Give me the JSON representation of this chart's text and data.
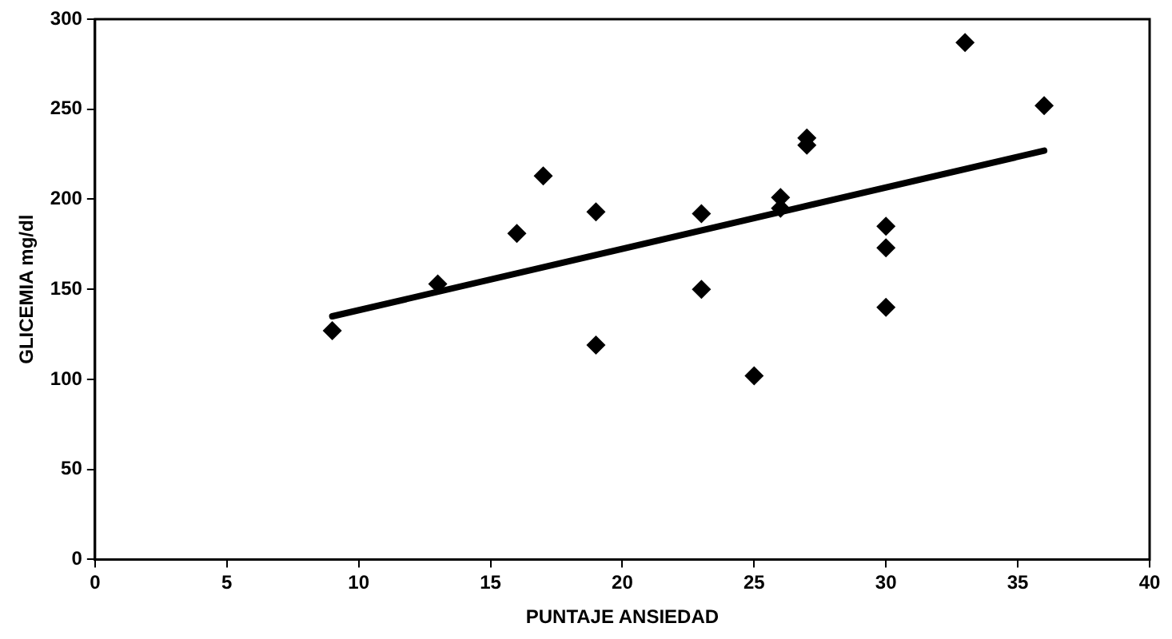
{
  "chart_data": {
    "type": "scatter",
    "xlabel": "PUNTAJE ANSIEDAD",
    "ylabel": "GLICEMIA mg/dl",
    "xlim": [
      0,
      40
    ],
    "xticks": [
      0,
      5,
      10,
      15,
      20,
      25,
      30,
      35,
      40
    ],
    "ylim": [
      0,
      300
    ],
    "yticks": [
      0,
      50,
      100,
      150,
      200,
      250,
      300
    ],
    "grid": false,
    "legend": false,
    "marker": "diamond",
    "series": [
      {
        "color": "#000000",
        "x": [
          9,
          13,
          16,
          17,
          19,
          19,
          23,
          23,
          25,
          26,
          26,
          27,
          27,
          30,
          30,
          30,
          33,
          36
        ],
        "values": [
          127,
          153,
          181,
          213,
          193,
          119,
          192,
          150,
          102,
          201,
          195,
          234,
          230,
          185,
          173,
          140,
          287,
          252
        ]
      },
      {
        "type": "line",
        "color": "#000000",
        "marker": "none",
        "line_style": "solid",
        "x": [
          9,
          36
        ],
        "values": [
          135,
          227
        ]
      }
    ]
  }
}
